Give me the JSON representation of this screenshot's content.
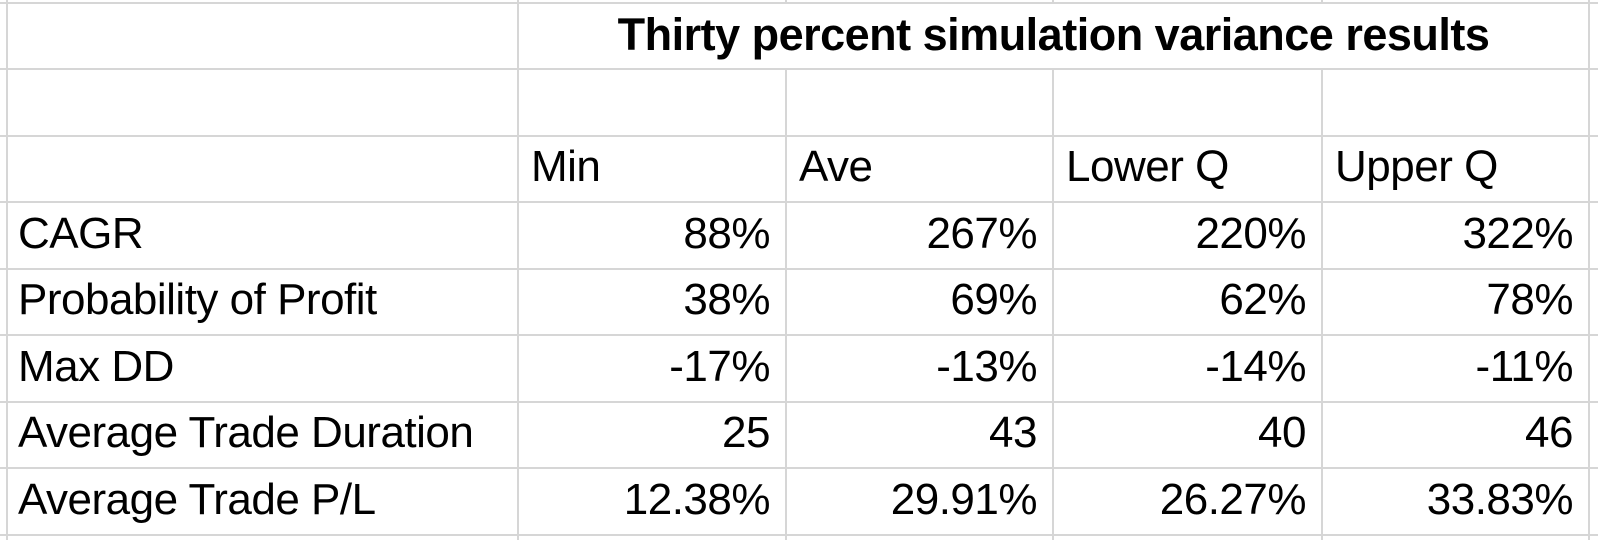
{
  "theme": {
    "gridline": "#d6d6d6",
    "background": "#ffffff",
    "text": "#000000"
  },
  "sheet": {
    "title": "Thirty percent simulation variance results",
    "columns": [
      "Min",
      "Ave",
      "Lower Q",
      "Upper Q"
    ],
    "rows": [
      {
        "label": "CAGR",
        "values": [
          "88%",
          "267%",
          "220%",
          "322%"
        ]
      },
      {
        "label": "Probability of Profit",
        "values": [
          "38%",
          "69%",
          "62%",
          "78%"
        ]
      },
      {
        "label": "Max DD",
        "values": [
          "-17%",
          "-13%",
          "-14%",
          "-11%"
        ]
      },
      {
        "label": "Average Trade Duration",
        "values": [
          "25",
          "43",
          "40",
          "46"
        ]
      },
      {
        "label": "Average Trade P/L",
        "values": [
          "12.38%",
          "29.91%",
          "26.27%",
          "33.83%"
        ]
      }
    ]
  }
}
